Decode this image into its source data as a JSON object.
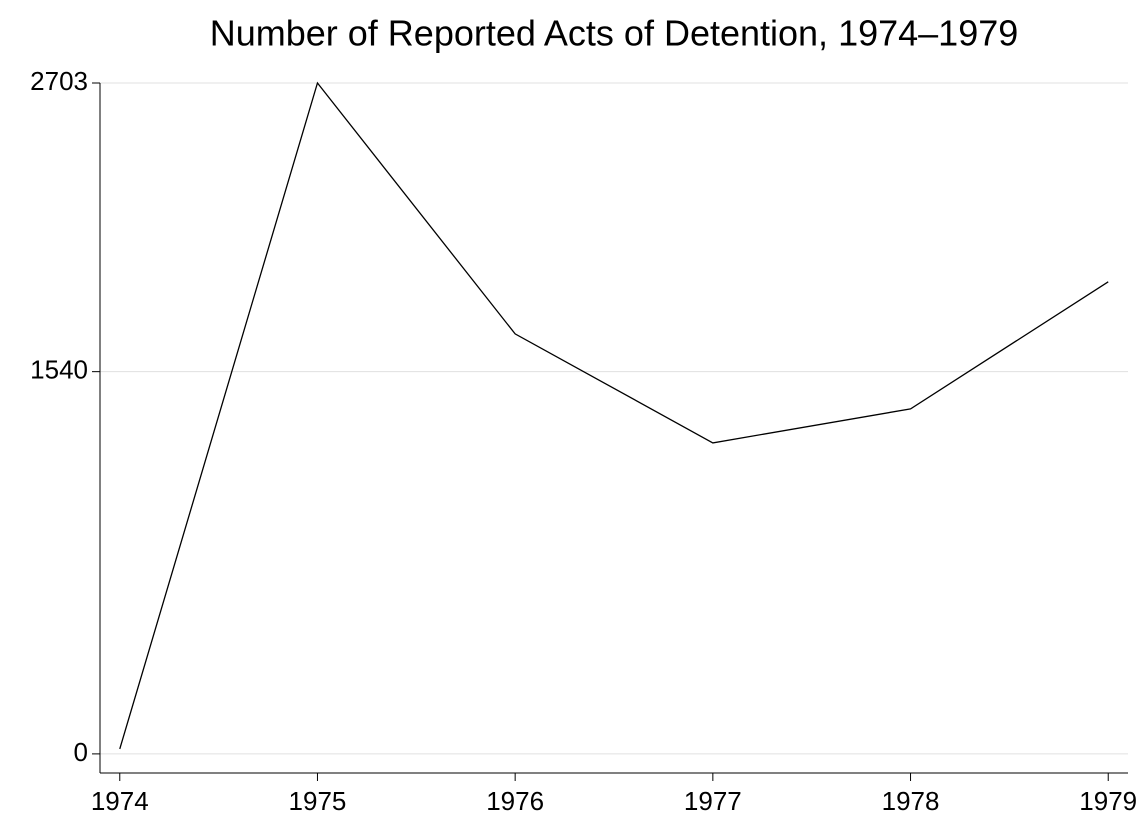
{
  "chart_data": {
    "type": "line",
    "title": "Number of Reported Acts of Detention, 1974–1979",
    "x": [
      1974,
      1975,
      1976,
      1977,
      1978,
      1979
    ],
    "series": [
      {
        "color": "#000000",
        "values": [
          20,
          2703,
          1692,
          1253,
          1390,
          1902
        ]
      }
    ],
    "xlim": [
      1973.9,
      1979.1
    ],
    "xticks": [
      1974,
      1975,
      1976,
      1977,
      1978,
      1979
    ],
    "ylim": [
      -77,
      2703
    ],
    "yticks": [
      0,
      1540,
      2703
    ],
    "grid": true
  }
}
